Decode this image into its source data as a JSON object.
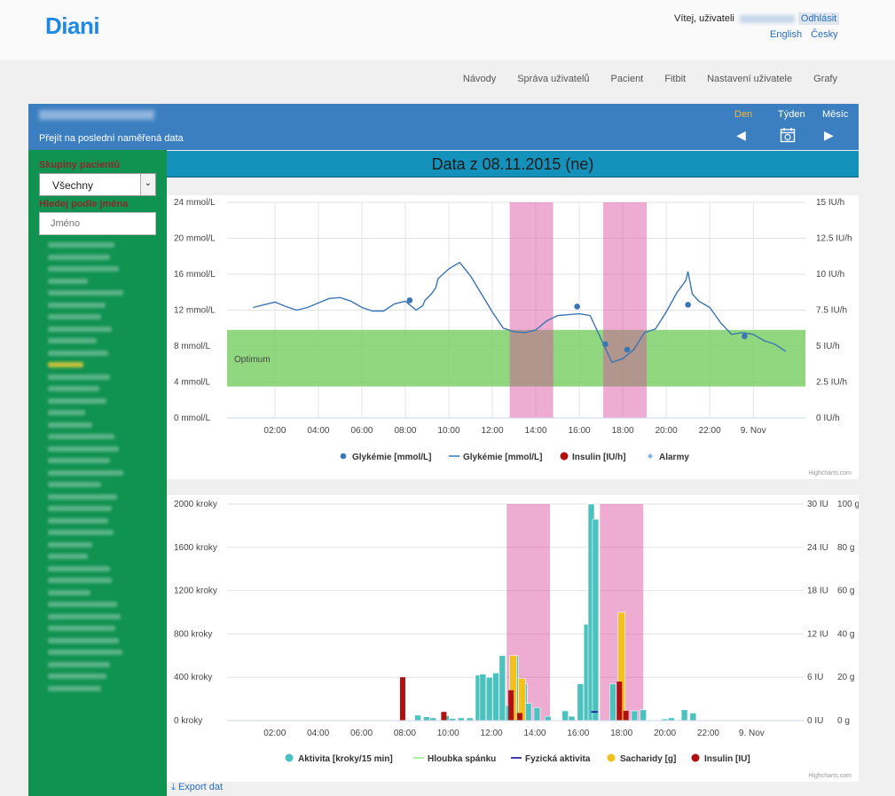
{
  "header": {
    "logo": "Diani",
    "welcome": "Vítej, uživateli",
    "logout": "Odhlásit",
    "languages": [
      "English",
      "Česky"
    ]
  },
  "topnav": [
    "Návody",
    "Správa uživatelů",
    "Pacient",
    "Fitbit",
    "Nastavení uživatele",
    "Grafy"
  ],
  "panel": {
    "last_data_link": "Přejít na poslední naměřená data",
    "periods": [
      "Den",
      "Týden",
      "Měsíc"
    ],
    "active_period": "Den"
  },
  "sidebar": {
    "groups_label": "Skupiny pacientů",
    "groups_selected": "Všechny",
    "search_label": "Hledej podle jména",
    "search_placeholder": "Jméno"
  },
  "date_title": "Data z 08.11.2015 (ne)",
  "chart_data": [
    {
      "type": "line",
      "x_labels": [
        "02:00",
        "04:00",
        "06:00",
        "08:00",
        "10:00",
        "12:00",
        "14:00",
        "16:00",
        "18:00",
        "20:00",
        "22:00",
        "9. Nov"
      ],
      "ylim": [
        0,
        24
      ],
      "y_ticks": [
        "0 mmol/L",
        "4 mmol/L",
        "8 mmol/L",
        "12 mmol/L",
        "16 mmol/L",
        "20 mmol/L",
        "24 mmol/L"
      ],
      "y2lim": [
        0,
        15
      ],
      "y2_ticks": [
        "0 IU/h",
        "2.5 IU/h",
        "5 IU/h",
        "7.5 IU/h",
        "10 IU/h",
        "12.5 IU/h",
        "15 IU/h"
      ],
      "optimum_band": {
        "label": "Optimum",
        "from": 3.5,
        "to": 9.8
      },
      "pink_bands_hours": [
        [
          11.8,
          13.8
        ],
        [
          16.1,
          18.1
        ]
      ],
      "series": [
        {
          "name": "Glykémie [mmol/L]",
          "kind": "points",
          "x": [
            7.2,
            14.9,
            16.2,
            17.2,
            20.0,
            22.6
          ],
          "y": [
            13.1,
            12.4,
            8.2,
            7.6,
            12.6,
            9.1
          ]
        },
        {
          "name": "Glykémie [mmol/L]",
          "kind": "line",
          "x": [
            0.0,
            0.5,
            1.0,
            1.5,
            2.0,
            2.5,
            3.0,
            3.5,
            4.0,
            4.5,
            5.0,
            5.5,
            6.0,
            6.5,
            7.0,
            7.5,
            7.8,
            7.9,
            8.2,
            8.4,
            8.5,
            9.0,
            9.5,
            10.0,
            10.5,
            11.0,
            11.5,
            12.0,
            12.5,
            13.0,
            13.5,
            14.0,
            14.5,
            15.0,
            15.5,
            16.0,
            16.5,
            17.0,
            17.5,
            18.0,
            18.5,
            19.0,
            19.5,
            19.9,
            20.0,
            20.2,
            20.5,
            21.0,
            21.5,
            22.0,
            22.5,
            23.0,
            23.5,
            24.0,
            24.5
          ],
          "y": [
            12.3,
            12.6,
            12.9,
            12.4,
            12.0,
            12.3,
            12.8,
            13.3,
            13.4,
            13.0,
            12.3,
            11.9,
            11.9,
            12.7,
            13.0,
            12.0,
            12.5,
            13.1,
            13.8,
            14.5,
            15.5,
            16.6,
            17.3,
            15.8,
            13.8,
            11.8,
            10.0,
            9.6,
            9.5,
            9.8,
            10.8,
            11.4,
            11.5,
            11.6,
            11.4,
            8.8,
            6.2,
            6.6,
            7.6,
            9.5,
            9.9,
            11.8,
            14.0,
            15.3,
            16.3,
            13.8,
            13.0,
            12.3,
            10.6,
            9.3,
            9.5,
            9.3,
            8.6,
            8.2,
            7.4
          ]
        },
        {
          "name": "Insulin [IU/h]",
          "kind": "line",
          "x": [],
          "y": []
        },
        {
          "name": "Alarmy",
          "kind": "points",
          "x": [],
          "y": []
        }
      ],
      "credit": "Highcharts.com"
    },
    {
      "type": "bar",
      "x_labels": [
        "02:00",
        "04:00",
        "06:00",
        "08:00",
        "10:00",
        "12:00",
        "14:00",
        "16:00",
        "18:00",
        "20:00",
        "22:00",
        "9. Nov"
      ],
      "ylim": [
        0,
        2000
      ],
      "y_ticks": [
        "0 kroky",
        "400 kroky",
        "800 kroky",
        "1200 kroky",
        "1600 kroky",
        "2000 kroky"
      ],
      "y2_ticks": [
        "0 IU",
        "6 IU",
        "12 IU",
        "18 IU",
        "24 IU",
        "30 IU"
      ],
      "y3_ticks": [
        "0 g",
        "20 g",
        "40 g",
        "60 g",
        "80 g",
        "100 g"
      ],
      "pink_bands_hours": [
        [
          11.7,
          13.7
        ],
        [
          16.0,
          18.0
        ]
      ],
      "series": [
        {
          "name": "Aktivita [kroky/15 min]",
          "color": "#4cc2bf",
          "x": [
            7.6,
            8.0,
            8.3,
            8.9,
            9.2,
            9.6,
            10.0,
            10.4,
            10.6,
            10.9,
            11.2,
            11.5,
            11.8,
            12.1,
            12.5,
            12.7,
            13.1,
            13.6,
            14.4,
            14.7,
            15.1,
            15.4,
            15.6,
            15.8,
            16.6,
            17.1,
            17.6,
            18.0,
            19.0,
            19.3,
            19.9,
            20.3
          ],
          "y": [
            50,
            35,
            25,
            45,
            20,
            25,
            25,
            420,
            430,
            400,
            440,
            600,
            140,
            600,
            340,
            160,
            120,
            40,
            90,
            40,
            340,
            890,
            2000,
            1860,
            340,
            40,
            90,
            100,
            15,
            25,
            100,
            70
          ]
        },
        {
          "name": "Hloubka spánku",
          "color": "#90ed7d",
          "x": [],
          "y": []
        },
        {
          "name": "Fyzická aktivita",
          "color": "#00008b",
          "x": [
            15.6,
            15.9
          ],
          "y": [
            80,
            80
          ]
        },
        {
          "name": "Sacharidy [g]",
          "color": "#f4c01e",
          "x": [
            12.0,
            12.4,
            17.0
          ],
          "y": [
            600,
            390,
            1000
          ]
        },
        {
          "name": "Insulin [IU]",
          "color": "#b01010",
          "x": [
            6.9,
            8.8,
            11.9,
            12.3,
            16.9,
            17.2
          ],
          "y": [
            400,
            80,
            280,
            70,
            360,
            90
          ]
        }
      ],
      "credit": "Highcharts.com"
    }
  ],
  "export_link": "Export dat"
}
